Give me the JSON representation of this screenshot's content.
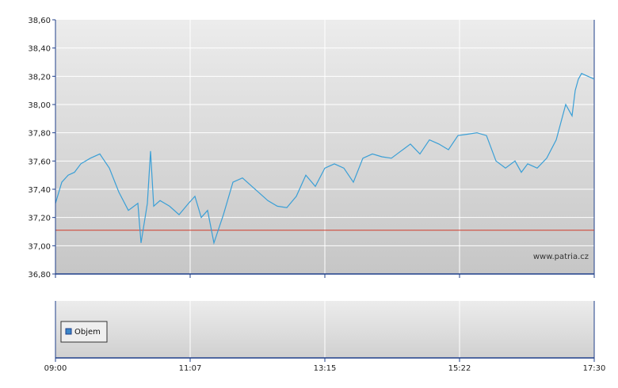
{
  "chart_data": [
    {
      "type": "line",
      "title": "",
      "xlabel": "",
      "ylabel": "",
      "ylim": [
        36.8,
        38.6
      ],
      "y_ticks": [
        "38,60",
        "38,40",
        "38,20",
        "38,00",
        "37,80",
        "37,60",
        "37,40",
        "37,20",
        "37,00",
        "36,80"
      ],
      "y_tick_values": [
        38.6,
        38.4,
        38.2,
        38.0,
        37.8,
        37.6,
        37.4,
        37.2,
        37.0,
        36.8
      ],
      "reference_line": 37.11,
      "watermark": "www.patria.cz",
      "grid": true,
      "x_hours": [
        9.0,
        9.1,
        9.2,
        9.3,
        9.4,
        9.55,
        9.7,
        9.85,
        10.0,
        10.15,
        10.3,
        10.35,
        10.45,
        10.5,
        10.55,
        10.6,
        10.65,
        10.8,
        10.95,
        11.1,
        11.2,
        11.3,
        11.4,
        11.5,
        11.65,
        11.8,
        11.95,
        12.1,
        12.2,
        12.35,
        12.5,
        12.65,
        12.8,
        12.95,
        13.1,
        13.25,
        13.4,
        13.55,
        13.7,
        13.85,
        14.0,
        14.15,
        14.3,
        14.45,
        14.6,
        14.75,
        14.9,
        15.05,
        15.2,
        15.35,
        15.5,
        15.65,
        15.8,
        15.95,
        16.1,
        16.25,
        16.35,
        16.45,
        16.6,
        16.75,
        16.9,
        17.05,
        17.15,
        17.2,
        17.25,
        17.3,
        17.4,
        17.5
      ],
      "values": [
        37.3,
        37.45,
        37.5,
        37.52,
        37.58,
        37.62,
        37.65,
        37.55,
        37.38,
        37.25,
        37.3,
        37.02,
        37.3,
        37.67,
        37.28,
        37.3,
        37.32,
        37.28,
        37.22,
        37.3,
        37.35,
        37.2,
        37.25,
        37.02,
        37.22,
        37.45,
        37.48,
        37.42,
        37.38,
        37.32,
        37.28,
        37.27,
        37.35,
        37.5,
        37.42,
        37.55,
        37.58,
        37.55,
        37.45,
        37.62,
        37.65,
        37.63,
        37.62,
        37.67,
        37.72,
        37.65,
        37.75,
        37.72,
        37.68,
        37.78,
        37.79,
        37.8,
        37.78,
        37.6,
        37.55,
        37.6,
        37.52,
        37.58,
        37.55,
        37.62,
        37.75,
        38.0,
        37.92,
        38.1,
        38.18,
        38.22,
        38.2,
        38.18
      ]
    },
    {
      "type": "bar",
      "title": "",
      "legend": "Objem",
      "values": [],
      "x_ticks": [
        "09:00",
        "11:07",
        "13:15",
        "15:22",
        "17:30"
      ]
    }
  ],
  "colors": {
    "price_line": "#3a9fd6",
    "reference_line": "#d03a2a",
    "grid": "#ffffff",
    "plot_top": "#ececec",
    "plot_bottom": "#c9c9c9",
    "axis": "#1f3f8a",
    "legend_swatch": "#3a86c8"
  }
}
